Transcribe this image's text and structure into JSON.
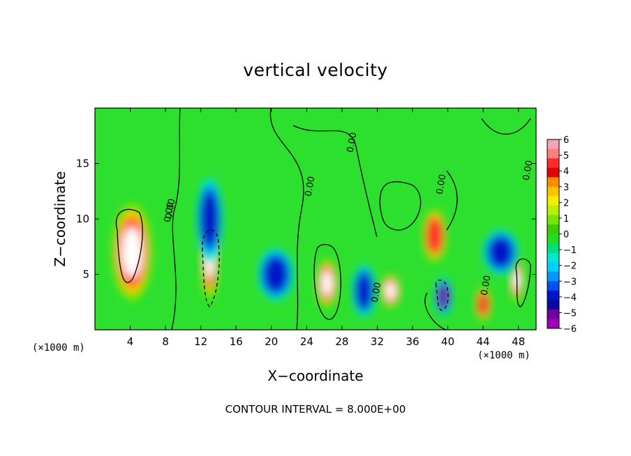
{
  "chart_data": {
    "type": "heatmap",
    "title": "vertical velocity",
    "xlabel": "X−coordinate",
    "ylabel": "Z−coordinate",
    "x_unit_label": "(×1000 m)",
    "y_unit_label": "(×1000 m)",
    "footnote": "CONTOUR INTERVAL = 8.000E+00",
    "xlim": [
      0,
      50
    ],
    "ylim": [
      0,
      20
    ],
    "x_ticks": [
      "4",
      "8",
      "12",
      "16",
      "20",
      "24",
      "28",
      "32",
      "36",
      "40",
      "44",
      "48"
    ],
    "y_ticks": [
      "5",
      "10",
      "15"
    ],
    "colorbar": {
      "ticks": [
        "6",
        "5",
        "4",
        "3",
        "2",
        "1",
        "0",
        "−1",
        "−2",
        "−3",
        "−4",
        "−5",
        "−6"
      ],
      "range": [
        -6,
        6
      ],
      "colors": [
        "#f4a5b5",
        "#ff7f7f",
        "#ff2a2a",
        "#e60000",
        "#ff8c00",
        "#ffc400",
        "#f0f000",
        "#b8f000",
        "#74e600",
        "#3ccd00",
        "#22dd22",
        "#00e07a",
        "#00e8c8",
        "#00d0ff",
        "#0096ff",
        "#0050f0",
        "#0014c8",
        "#0a0aa0",
        "#7000a0",
        "#a000b8"
      ]
    },
    "contour_labels": [
      "0.00",
      "0.00",
      "0.00",
      "0.00",
      "0.00",
      "0.00",
      "0.00",
      "0.00"
    ],
    "cells": [
      {
        "x": 4.2,
        "z": 7,
        "w": 3.3,
        "h": 6.5,
        "v": 6
      },
      {
        "x": 13,
        "z": 6.5,
        "w": 1.5,
        "h": 5.5,
        "v": 6
      },
      {
        "x": 26.3,
        "z": 4.2,
        "w": 1.8,
        "h": 3.2,
        "v": 6
      },
      {
        "x": 33.5,
        "z": 3.5,
        "w": 1.7,
        "h": 2.2,
        "v": 6
      },
      {
        "x": 39.5,
        "z": 3,
        "w": 1.6,
        "h": 2.5,
        "v": -6
      },
      {
        "x": 44,
        "z": 2.3,
        "w": 1.4,
        "h": 2.2,
        "v": 5
      },
      {
        "x": 47.8,
        "z": 4.5,
        "w": 1.2,
        "h": 2.8,
        "v": 6
      },
      {
        "x": 13,
        "z": 10,
        "w": 2.2,
        "h": 5.5,
        "v": -4
      },
      {
        "x": 20.5,
        "z": 5,
        "w": 3,
        "h": 3.5,
        "v": -4
      },
      {
        "x": 30.5,
        "z": 3.5,
        "w": 2,
        "h": 3.5,
        "v": -4
      },
      {
        "x": 38.5,
        "z": 8.5,
        "w": 2,
        "h": 3.5,
        "v": 4
      },
      {
        "x": 46,
        "z": 7,
        "w": 3,
        "h": 3,
        "v": -3
      }
    ]
  }
}
